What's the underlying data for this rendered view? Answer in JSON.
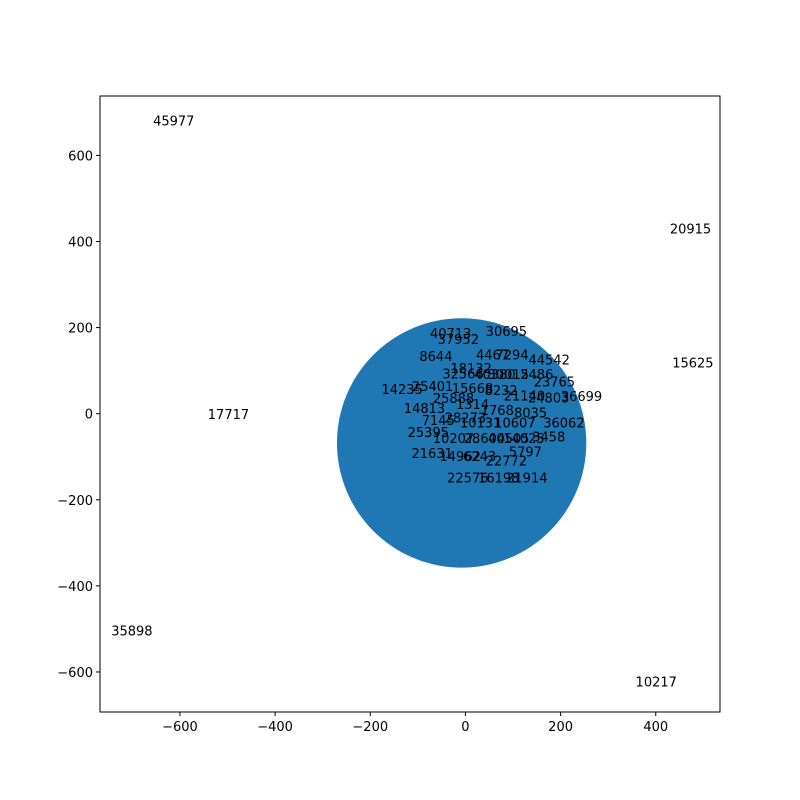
{
  "chart_data": {
    "type": "scatter",
    "title": "",
    "xlabel": "",
    "ylabel": "",
    "xlim": [
      -768,
      535
    ],
    "ylim": [
      -693,
      738
    ],
    "xticks": [
      -600,
      -400,
      -200,
      0,
      200,
      400
    ],
    "yticks": [
      -600,
      -400,
      -200,
      0,
      200,
      400,
      600
    ],
    "xtick_labels": [
      "−600",
      "−400",
      "−200",
      "0",
      "200",
      "400"
    ],
    "ytick_labels": [
      "−600",
      "−400",
      "−200",
      "0",
      "200",
      "400",
      "600"
    ],
    "grid": false,
    "legend": "none",
    "colors": {
      "marker": "#1f77b4",
      "axes": "#000000",
      "text": "#000000",
      "background": "#ffffff"
    },
    "marker": {
      "x": -8,
      "y": -68,
      "radius": 262,
      "shape": "circle"
    },
    "points": [
      {
        "x": -613,
        "y": 681,
        "label": "45977"
      },
      {
        "x": 473,
        "y": 430,
        "label": "20915"
      },
      {
        "x": 478,
        "y": 119,
        "label": "15625"
      },
      {
        "x": -498,
        "y": -1,
        "label": "17717"
      },
      {
        "x": -701,
        "y": -504,
        "label": "35898"
      },
      {
        "x": 401,
        "y": -622,
        "label": "10217"
      },
      {
        "x": -31,
        "y": 188,
        "label": "40713"
      },
      {
        "x": 86,
        "y": 192,
        "label": "30695"
      },
      {
        "x": -15,
        "y": 174,
        "label": "37952"
      },
      {
        "x": -62,
        "y": 134,
        "label": "8644"
      },
      {
        "x": 57,
        "y": 137,
        "label": "4467"
      },
      {
        "x": 98,
        "y": 138,
        "label": "7294"
      },
      {
        "x": 176,
        "y": 126,
        "label": "44542"
      },
      {
        "x": 12,
        "y": 106,
        "label": "18132"
      },
      {
        "x": -5,
        "y": 93,
        "label": "32566"
      },
      {
        "x": 62,
        "y": 92,
        "label": "40380"
      },
      {
        "x": 90,
        "y": 92,
        "label": "30015"
      },
      {
        "x": 150,
        "y": 92,
        "label": "2486"
      },
      {
        "x": 187,
        "y": 75,
        "label": "23765"
      },
      {
        "x": -133,
        "y": 57,
        "label": "14235"
      },
      {
        "x": -69,
        "y": 64,
        "label": "25401"
      },
      {
        "x": 15,
        "y": 60,
        "label": "15668"
      },
      {
        "x": 75,
        "y": 55,
        "label": "8232"
      },
      {
        "x": 124,
        "y": 42,
        "label": "21140"
      },
      {
        "x": 175,
        "y": 38,
        "label": "24803"
      },
      {
        "x": 244,
        "y": 41,
        "label": "36699"
      },
      {
        "x": -25,
        "y": 36,
        "label": "25888"
      },
      {
        "x": 15,
        "y": 23,
        "label": "1314"
      },
      {
        "x": -86,
        "y": 13,
        "label": "14813"
      },
      {
        "x": 67,
        "y": 9,
        "label": "1768"
      },
      {
        "x": 137,
        "y": 3,
        "label": "8035"
      },
      {
        "x": -57,
        "y": -15,
        "label": "7145"
      },
      {
        "x": 0,
        "y": -9,
        "label": "28273"
      },
      {
        "x": 32,
        "y": -20,
        "label": "10131"
      },
      {
        "x": 104,
        "y": -20,
        "label": "10607"
      },
      {
        "x": 207,
        "y": -20,
        "label": "36062"
      },
      {
        "x": -78,
        "y": -42,
        "label": "25395"
      },
      {
        "x": -25,
        "y": -56,
        "label": "10207"
      },
      {
        "x": 40,
        "y": -56,
        "label": "28604"
      },
      {
        "x": 91,
        "y": -56,
        "label": "40505"
      },
      {
        "x": 123,
        "y": -56,
        "label": "14025"
      },
      {
        "x": 175,
        "y": -53,
        "label": "3458"
      },
      {
        "x": 126,
        "y": -88,
        "label": "5797"
      },
      {
        "x": -70,
        "y": -91,
        "label": "21631"
      },
      {
        "x": -11,
        "y": -98,
        "label": "14962"
      },
      {
        "x": 30,
        "y": -98,
        "label": "6243"
      },
      {
        "x": 86,
        "y": -109,
        "label": "22772"
      },
      {
        "x": 5,
        "y": -148,
        "label": "22576"
      },
      {
        "x": 70,
        "y": -148,
        "label": "16198"
      },
      {
        "x": 129,
        "y": -148,
        "label": "21914"
      }
    ]
  }
}
